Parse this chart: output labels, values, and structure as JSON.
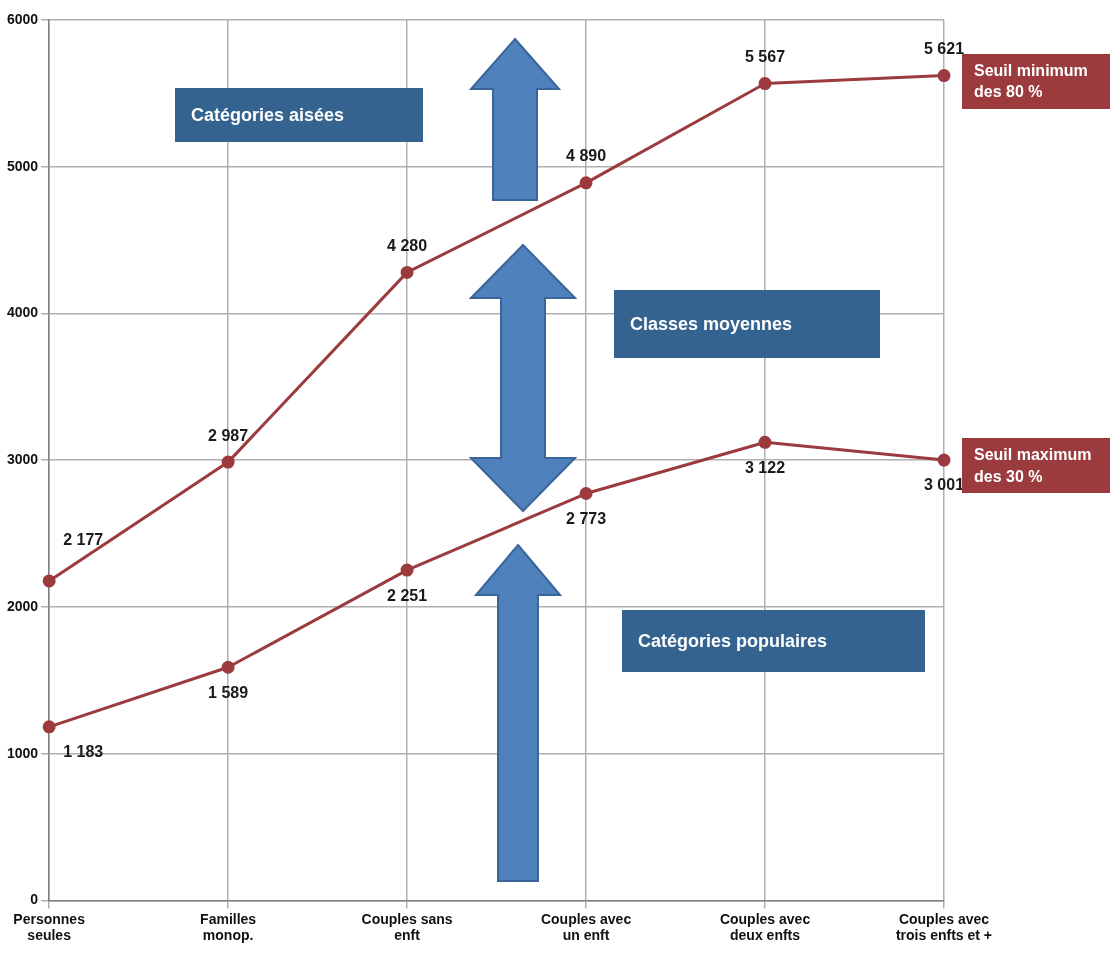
{
  "chart_data": {
    "type": "line",
    "categories": [
      "Personnes\nseules",
      "Familles\nmonop.",
      "Couples sans\nenft",
      "Couples avec\nun enft",
      "Couples avec\ndeux enfts",
      "Couples avec\ntrois enfts et +"
    ],
    "series": [
      {
        "name": "Seuil minimum des 80 %",
        "color": "#9b3b3e",
        "values": [
          2177,
          2987,
          4280,
          4890,
          5567,
          5621
        ],
        "value_labels": [
          "2 177",
          "2 987",
          "4 280",
          "4 890",
          "5 567",
          "5 621"
        ]
      },
      {
        "name": "Seuil maximum des 30 %",
        "color": "#9b3b3e",
        "values": [
          1183,
          1589,
          2251,
          2773,
          3122,
          3001
        ],
        "value_labels": [
          "1 183",
          "1 589",
          "2 251",
          "2 773",
          "3 122",
          "3 001"
        ]
      }
    ],
    "ylim": [
      0,
      6000
    ],
    "yticks": [
      0,
      1000,
      2000,
      3000,
      4000,
      5000,
      6000
    ],
    "grid": true,
    "legend": false,
    "marker": "circle",
    "line_style": "solid",
    "annotations": [
      "Catégories aisées",
      "Classes moyennes",
      "Catégories populaires"
    ]
  }
}
